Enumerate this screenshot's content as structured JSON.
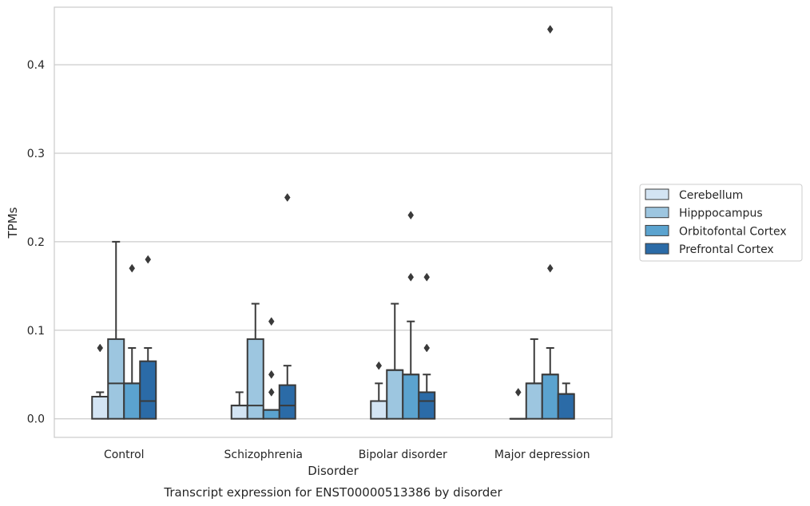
{
  "chart_data": {
    "type": "box",
    "title": "",
    "caption": "Transcript expression for ENST00000513386 by disorder",
    "xlabel": "Disorder",
    "ylabel": "TPMs",
    "ylim": [
      -0.021,
      0.465
    ],
    "yticks": [
      0.0,
      0.1,
      0.2,
      0.3,
      0.4
    ],
    "ytick_labels": [
      "0.0",
      "0.1",
      "0.2",
      "0.3",
      "0.4"
    ],
    "grid": "horizontal",
    "legend_position": "right-center",
    "categories": [
      "Control",
      "Schizophrenia",
      "Bipolar disorder",
      "Major depression"
    ],
    "series": [
      {
        "name": "Cerebellum",
        "color": "#d3e4f3",
        "boxes": [
          {
            "whislo": 0.0,
            "q1": 0.0,
            "med": 0.025,
            "q3": 0.025,
            "whishi": 0.03,
            "fliers": [
              0.08
            ]
          },
          {
            "whislo": 0.0,
            "q1": 0.0,
            "med": 0.015,
            "q3": 0.015,
            "whishi": 0.03,
            "fliers": []
          },
          {
            "whislo": 0.0,
            "q1": 0.0,
            "med": 0.02,
            "q3": 0.02,
            "whishi": 0.04,
            "fliers": [
              0.06
            ]
          },
          {
            "whislo": 0.0,
            "q1": 0.0,
            "med": 0.0,
            "q3": 0.0,
            "whishi": 0.0,
            "fliers": [
              0.03
            ]
          }
        ]
      },
      {
        "name": "Hipppocampus",
        "color": "#9dc6e0",
        "boxes": [
          {
            "whislo": 0.0,
            "q1": 0.0,
            "med": 0.04,
            "q3": 0.09,
            "whishi": 0.2,
            "fliers": []
          },
          {
            "whislo": 0.0,
            "q1": 0.0,
            "med": 0.015,
            "q3": 0.09,
            "whishi": 0.13,
            "fliers": []
          },
          {
            "whislo": 0.0,
            "q1": 0.0,
            "med": 0.055,
            "q3": 0.055,
            "whishi": 0.13,
            "fliers": []
          },
          {
            "whislo": 0.0,
            "q1": 0.0,
            "med": 0.04,
            "q3": 0.04,
            "whishi": 0.09,
            "fliers": []
          }
        ]
      },
      {
        "name": "Orbitofontal Cortex",
        "color": "#5ba3cf",
        "boxes": [
          {
            "whislo": 0.0,
            "q1": 0.0,
            "med": 0.04,
            "q3": 0.04,
            "whishi": 0.08,
            "fliers": [
              0.17
            ]
          },
          {
            "whislo": 0.0,
            "q1": 0.0,
            "med": 0.01,
            "q3": 0.01,
            "whishi": 0.01,
            "fliers": [
              0.03,
              0.05,
              0.11
            ]
          },
          {
            "whislo": 0.0,
            "q1": 0.0,
            "med": 0.05,
            "q3": 0.05,
            "whishi": 0.11,
            "fliers": [
              0.16,
              0.23
            ]
          },
          {
            "whislo": 0.0,
            "q1": 0.0,
            "med": 0.05,
            "q3": 0.05,
            "whishi": 0.08,
            "fliers": [
              0.17,
              0.44
            ]
          }
        ]
      },
      {
        "name": "Prefrontal Cortex",
        "color": "#2b6ba7",
        "boxes": [
          {
            "whislo": 0.0,
            "q1": 0.0,
            "med": 0.02,
            "q3": 0.065,
            "whishi": 0.08,
            "fliers": [
              0.18
            ]
          },
          {
            "whislo": 0.0,
            "q1": 0.0,
            "med": 0.015,
            "q3": 0.038,
            "whishi": 0.06,
            "fliers": [
              0.25
            ]
          },
          {
            "whislo": 0.0,
            "q1": 0.0,
            "med": 0.02,
            "q3": 0.03,
            "whishi": 0.05,
            "fliers": [
              0.08,
              0.16
            ]
          },
          {
            "whislo": 0.0,
            "q1": 0.0,
            "med": 0.028,
            "q3": 0.028,
            "whishi": 0.04,
            "fliers": []
          }
        ]
      }
    ]
  }
}
